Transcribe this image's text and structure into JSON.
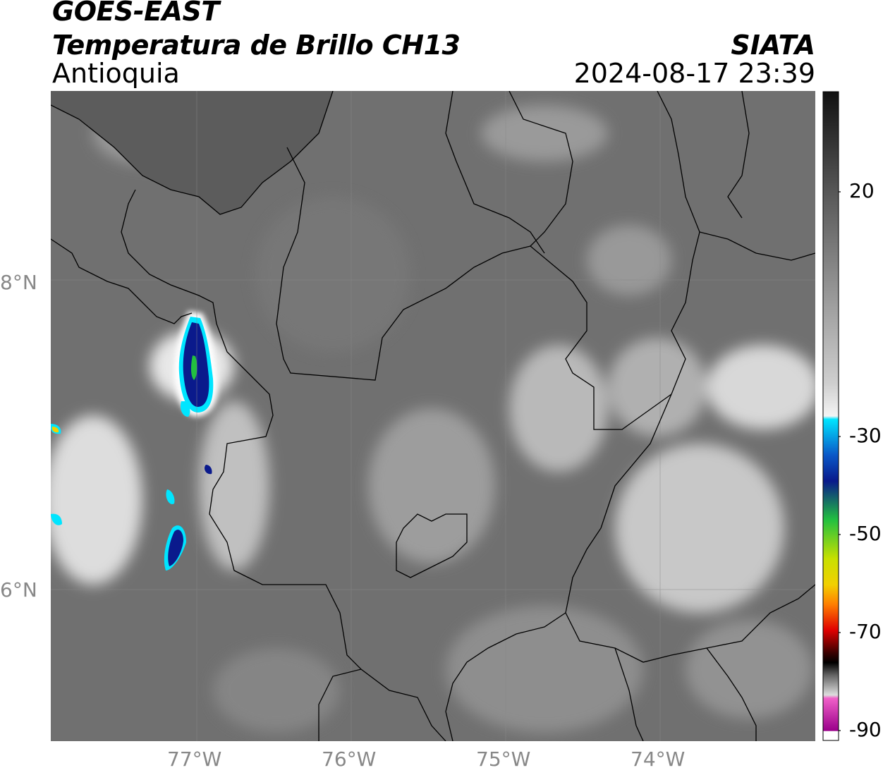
{
  "header": {
    "title": "GOES-EAST",
    "subtitle": "Temperatura de Brillo CH13",
    "region": "Antioquia",
    "organization": "SIATA",
    "timestamp": "2024-08-17 23:39"
  },
  "map": {
    "lat_ticks": [
      {
        "value": 8,
        "label": "8°N"
      },
      {
        "value": 6,
        "label": "6°N"
      }
    ],
    "lon_ticks": [
      {
        "value": -77,
        "label": "77°W"
      },
      {
        "value": -76,
        "label": "76°W"
      },
      {
        "value": -75,
        "label": "75°W"
      },
      {
        "value": -74,
        "label": "74°W"
      }
    ],
    "extent": {
      "lon_min": -77.95,
      "lon_max": -73.0,
      "lat_min": 5.0,
      "lat_max": 9.2
    },
    "background_gray": "#707070",
    "grid": true
  },
  "colorbar": {
    "ticks": [
      {
        "value": 20,
        "label": "20"
      },
      {
        "value": -30,
        "label": "-30"
      },
      {
        "value": -50,
        "label": "-50"
      },
      {
        "value": -70,
        "label": "-70"
      },
      {
        "value": -90,
        "label": "-90"
      }
    ],
    "range": [
      -90,
      45
    ],
    "colors": {
      "warm_dark": "#111111",
      "mid_gray": "#8a8a8a",
      "light": "#f4f4f4",
      "cyan": "#00e5ff",
      "blue": "#0a1a8c",
      "green": "#22c040",
      "yellow": "#f2d000",
      "orange": "#ff7f00",
      "red": "#e00000",
      "dark_red": "#3a0000",
      "pink": "#f060c8",
      "purple": "#9a008a"
    }
  }
}
